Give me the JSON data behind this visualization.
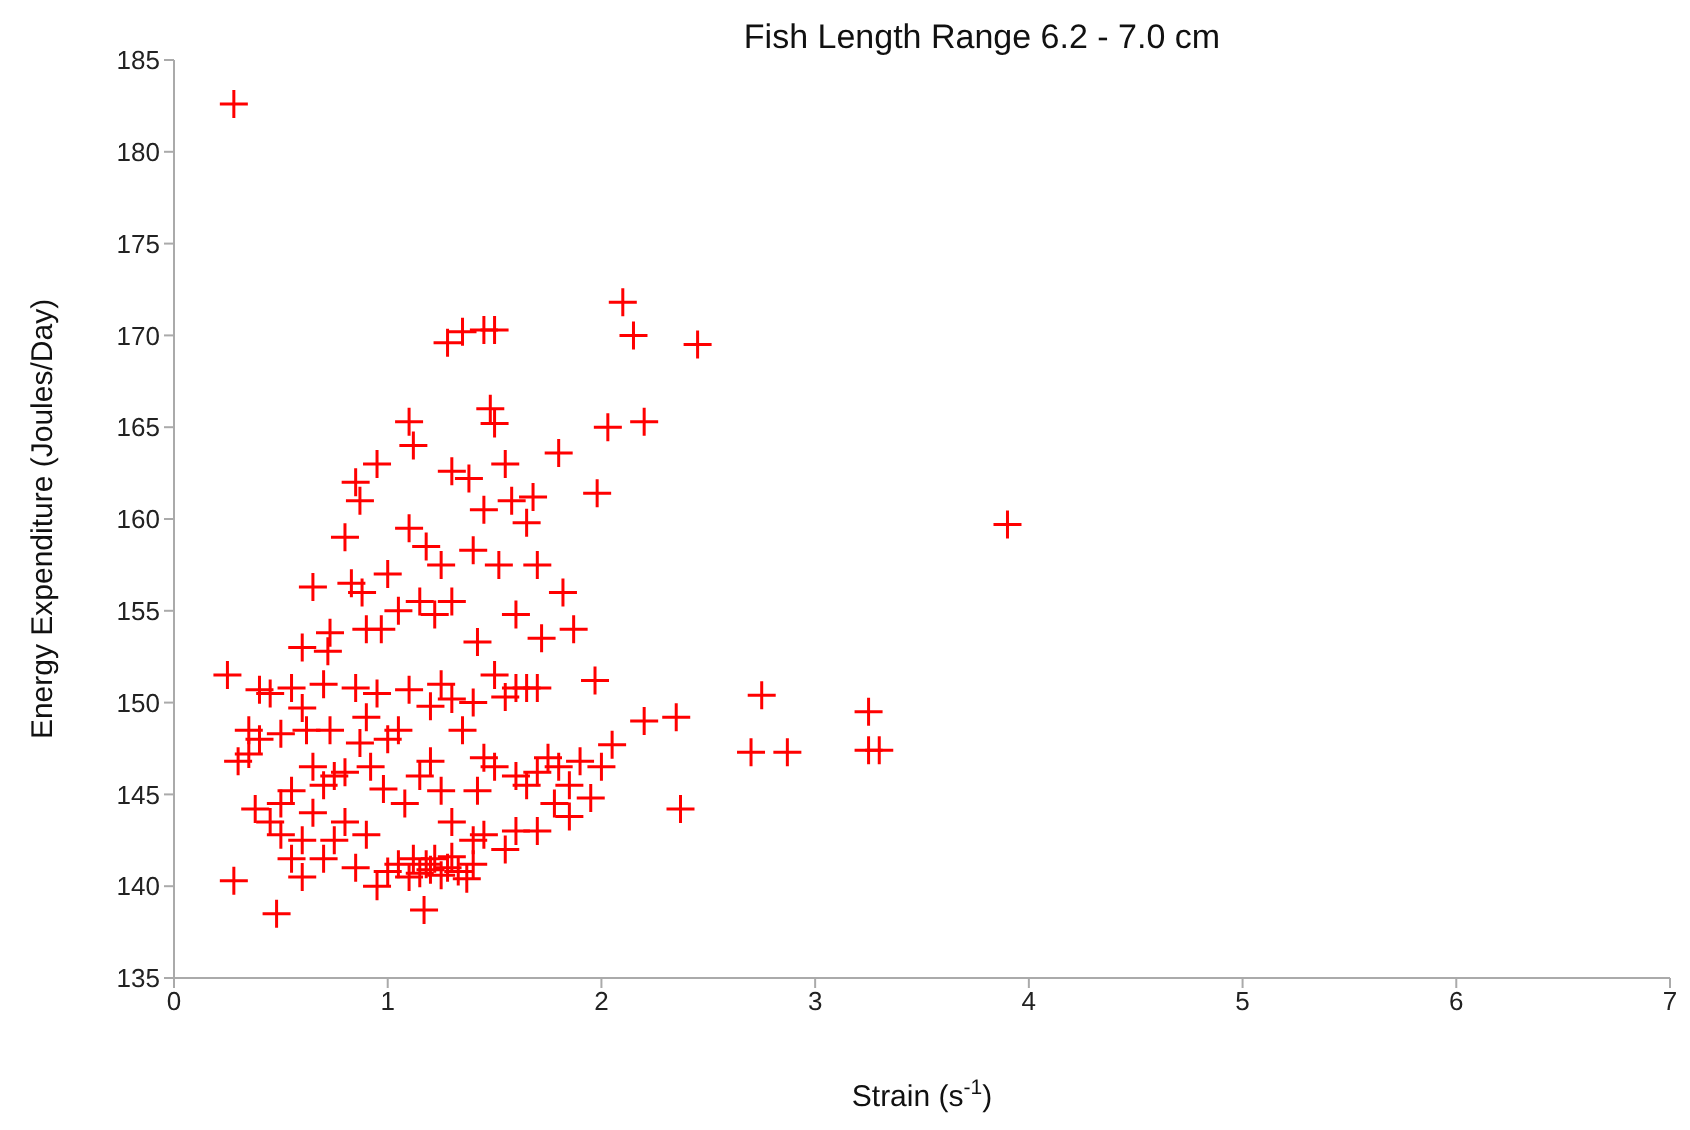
{
  "chart_data": {
    "type": "scatter",
    "title": "Fish Length Range 6.2 - 7.0 cm",
    "xlabel": "Strain (s$^{-1}$)",
    "ylabel": "Energy Expenditure (Joules/Day)",
    "xlim": [
      0,
      7
    ],
    "xticks": [
      0,
      1,
      2,
      3,
      4,
      5,
      6,
      7
    ],
    "ylim": [
      135,
      185
    ],
    "yticks": [
      135,
      140,
      145,
      150,
      155,
      160,
      165,
      170,
      175,
      180,
      185
    ],
    "grid": false,
    "legend": false,
    "marker": "cross",
    "series": [
      {
        "color": "#ff0000",
        "x": [
          0.28,
          0.25,
          0.28,
          0.3,
          0.48,
          2.1,
          2.15,
          2.45,
          2.2,
          2.03,
          1.98,
          3.9,
          2.75,
          3.25,
          2.35,
          2.2,
          2.05,
          2.7,
          2.87,
          3.25,
          3.3,
          2.37,
          1.97,
          1.87,
          1.82,
          1.8,
          1.45,
          1.5,
          1.35,
          1.28,
          1.1,
          1.12,
          1.48,
          1.5,
          0.8,
          0.85,
          0.87,
          0.95,
          0.88,
          0.83,
          1.0,
          0.97,
          1.05,
          1.1,
          1.18,
          1.22,
          1.3,
          1.3,
          1.38,
          1.4,
          1.45,
          1.52,
          1.55,
          1.58,
          1.65,
          1.68,
          1.7,
          1.6,
          1.72,
          1.42,
          1.25,
          0.65,
          0.73,
          0.6,
          0.72,
          0.9,
          1.15,
          0.4,
          0.45,
          0.55,
          0.6,
          0.5,
          0.4,
          0.35,
          0.62,
          0.7,
          0.85,
          0.9,
          0.95,
          1.05,
          1.1,
          1.2,
          1.25,
          1.3,
          1.4,
          1.5,
          1.55,
          1.6,
          1.65,
          1.7,
          1.35,
          1.45,
          1.5,
          1.6,
          1.7,
          1.75,
          1.8,
          1.85,
          1.9,
          1.95,
          2.0,
          1.85,
          1.78,
          1.7,
          1.65,
          1.42,
          1.4,
          1.25,
          1.15,
          1.08,
          0.98,
          0.92,
          0.87,
          0.8,
          0.75,
          0.7,
          0.65,
          0.55,
          0.5,
          0.45,
          0.5,
          0.55,
          0.6,
          0.7,
          0.75,
          0.8,
          0.85,
          0.9,
          0.95,
          1.0,
          1.05,
          1.1,
          1.12,
          1.15,
          1.18,
          1.2,
          1.22,
          1.25,
          1.28,
          1.3,
          1.33,
          1.37,
          1.4,
          1.17,
          1.45,
          1.55,
          1.6,
          0.6,
          0.38,
          0.65,
          0.73,
          1.0,
          1.2,
          1.3,
          0.35
        ],
        "values": [
          182.6,
          151.5,
          140.3,
          146.8,
          138.5,
          171.8,
          170,
          169.5,
          165.3,
          165,
          161.4,
          159.7,
          150.4,
          149.5,
          149.2,
          149,
          147.7,
          147.3,
          147.3,
          147.4,
          147.4,
          144.2,
          151.2,
          154,
          156,
          163.6,
          170.3,
          170.3,
          170.2,
          169.6,
          165.3,
          164,
          166,
          165.2,
          159,
          162,
          161,
          163,
          156,
          156.5,
          157,
          154,
          155,
          159.5,
          158.5,
          154.8,
          155.5,
          162.6,
          162.2,
          158.3,
          160.5,
          157.5,
          163,
          161,
          159.8,
          161.2,
          157.5,
          154.8,
          153.5,
          153.3,
          157.5,
          156.3,
          153.8,
          153,
          152.8,
          154,
          155.5,
          150.7,
          150.5,
          150.8,
          149.7,
          148.3,
          148,
          147.2,
          148.5,
          151,
          150.8,
          149.2,
          150.5,
          148.5,
          150.7,
          149.8,
          151,
          150.2,
          150,
          151.5,
          150.3,
          150.8,
          150.8,
          150.8,
          148.5,
          147,
          146.5,
          146,
          146.2,
          147,
          146.5,
          145.5,
          146.8,
          144.8,
          146.5,
          143.8,
          144.5,
          143,
          145.5,
          145.2,
          142.5,
          145.2,
          146,
          144.5,
          145.3,
          146.5,
          147.8,
          146.2,
          146,
          145.5,
          146.5,
          145.2,
          144.5,
          143.5,
          142.8,
          141.5,
          142.5,
          141.5,
          142.5,
          143.5,
          141,
          142.8,
          140,
          140.8,
          141.2,
          140.5,
          141.5,
          140.7,
          141.2,
          140.9,
          141.5,
          140.6,
          141,
          141.6,
          140.8,
          140.4,
          141.2,
          138.7,
          142.8,
          142,
          143,
          140.5,
          144.2,
          144,
          148.5,
          148,
          146.8,
          143.5,
          148.5
        ]
      }
    ]
  }
}
